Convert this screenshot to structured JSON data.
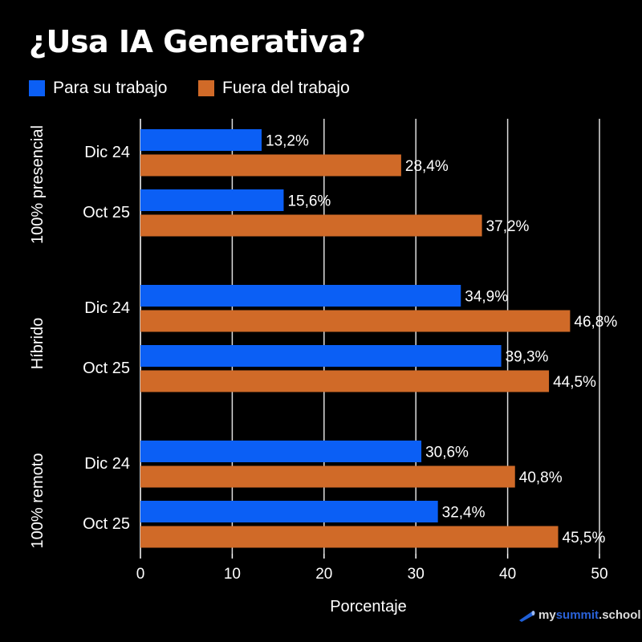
{
  "chart_data": {
    "type": "bar",
    "orientation": "horizontal",
    "title": "¿Usa IA Generativa?",
    "xlabel": "Porcentaje",
    "xlim": [
      0,
      50
    ],
    "xticks": [
      "0",
      "10",
      "20",
      "30",
      "40",
      "50"
    ],
    "grid": "vertical",
    "legend_placement": "top-left",
    "groups": [
      {
        "label": "100% presencial",
        "categories": [
          "Dic 24",
          "Oct 25"
        ]
      },
      {
        "label": "Híbrido",
        "categories": [
          "Dic 24",
          "Oct 25"
        ]
      },
      {
        "label": "100% remoto",
        "categories": [
          "Dic 24",
          "Oct 25"
        ]
      }
    ],
    "series": [
      {
        "name": "Para su trabajo",
        "color": "#0b5ff5",
        "values": [
          13.2,
          15.6,
          34.9,
          39.3,
          30.6,
          32.4
        ],
        "labels": [
          "13,2%",
          "15,6%",
          "34,9%",
          "39,3%",
          "30,6%",
          "32,4%"
        ]
      },
      {
        "name": "Fuera del trabajo",
        "color": "#d06a28",
        "values": [
          28.4,
          37.2,
          46.8,
          44.5,
          40.8,
          45.5
        ],
        "labels": [
          "28,4%",
          "37,2%",
          "46,8%",
          "44,5%",
          "40,8%",
          "45,5%"
        ]
      }
    ]
  },
  "watermark": {
    "text_pre": "my",
    "text_accent": "summit",
    "text_post": ".school"
  }
}
